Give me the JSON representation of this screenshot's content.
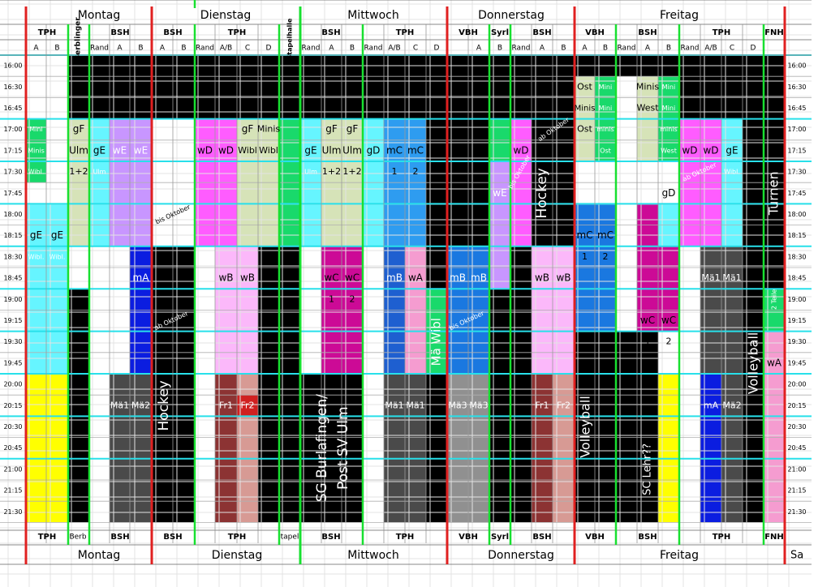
{
  "days": {
    "mon": "Montag",
    "tue": "Dienstag",
    "wed": "Mittwoch",
    "thu": "Donnerstag",
    "fri": "Freitag",
    "sat_partial": "Sa"
  },
  "halls": {
    "tph": "TPH",
    "berblinger": "Berblinger",
    "berb_short": "Berb",
    "bsh": "BSH",
    "stapelhalle": "Stapelhalle",
    "stapel_short": "tapel",
    "vbh": "VBH",
    "syrlin": "Syrl",
    "fnh": "FNH"
  },
  "sub": {
    "a": "A",
    "b": "B",
    "c": "C",
    "d": "D",
    "rand": "Rand",
    "ab": "A/B"
  },
  "times": [
    "16:00",
    "16:30",
    "16:45",
    "17:00",
    "17:15",
    "17:30",
    "17:45",
    "18:00",
    "18:15",
    "18:30",
    "18:45",
    "19:00",
    "19:15",
    "19:30",
    "19:45",
    "20:00",
    "20:15",
    "20:30",
    "20:45",
    "21:00",
    "21:15",
    "21:30"
  ],
  "teams": {
    "mini": "Mini",
    "minis": "Minis",
    "minis_lc": "minis",
    "minis_cap": "Minis",
    "gf": "gF",
    "ulm": "Ulm",
    "one_two": "1+2",
    "wibl": "Wibl.",
    "wibl2": "Wibl",
    "ge": "gE",
    "we": "wE",
    "wd": "wD",
    "gd": "gD",
    "mc": "mC",
    "wc": "wC",
    "wb": "wB",
    "mb": "mB",
    "wa": "wA",
    "ma": "mA",
    "ma1": "Mä1",
    "ma2": "Mä2",
    "ma3": "Mä3",
    "fr1": "Fr1",
    "fr2": "Fr2",
    "ost": "Ost",
    "west": "West",
    "one": "1",
    "two": "2",
    "two_teile": "2 Teile"
  },
  "notes": {
    "bis_oktober": "bis Oktober",
    "ab_oktober": "ab Oktober",
    "hockey": "Hockey",
    "volleyball": "Volleyball",
    "turnen": "Turnen",
    "ma_wibl": "Mä Wibl",
    "sg_line1": "SG Burlafingen/",
    "sg_line2": "Post SV Ulm",
    "sc_lehr": "SC Lehr??"
  },
  "colors": {
    "black": "#000000",
    "cyan": "#66f5ff",
    "lilac": "#c896ff",
    "pink": "#ff5cff",
    "sage": "#d6e3b8",
    "green": "#19d96b",
    "blue_mid": "#2e9cf0",
    "blue_dark": "#1e5fd0",
    "blue_pure": "#0b1de0",
    "magenta": "#cc0a96",
    "light_pink": "#fbb8fa",
    "mauve": "#f59cd0",
    "maroon": "#8c3333",
    "rose": "#d79a94",
    "yellow": "#ffff00",
    "dgray": "#4a4a4a",
    "mgray": "#909090",
    "steel": "#1a78e0"
  }
}
